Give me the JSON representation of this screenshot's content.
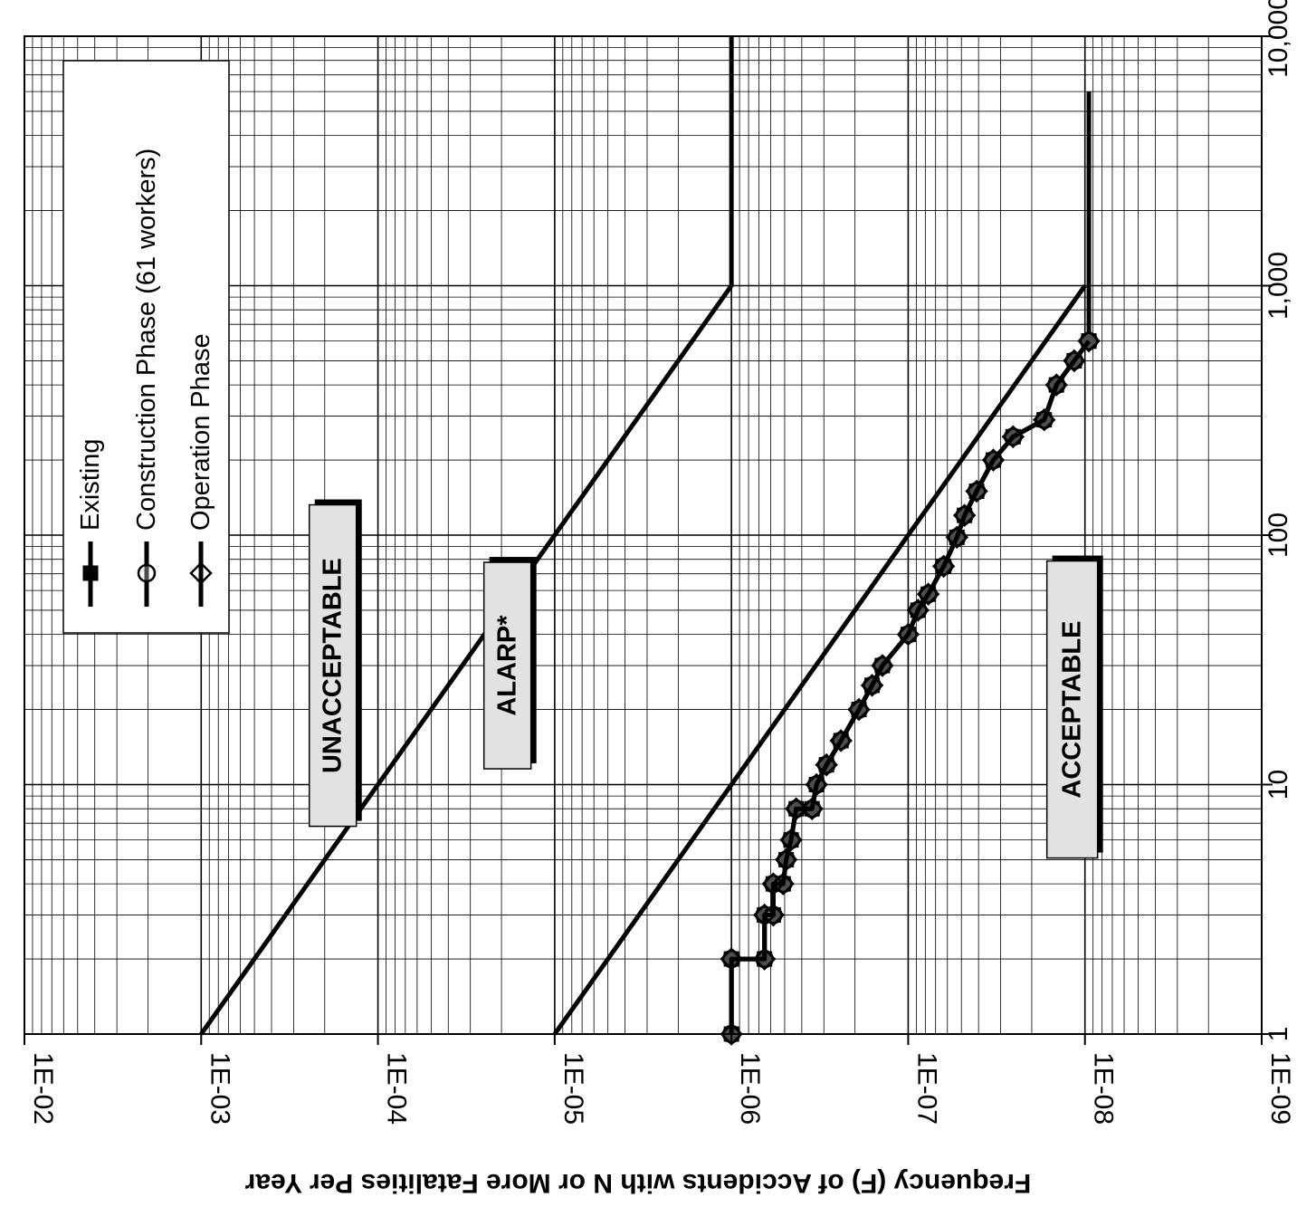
{
  "chart_data": {
    "type": "line",
    "title": "",
    "ylabel": "Frequency (F) of Accidents with N or More Fatalities Per Year",
    "xlabel": "",
    "x_scale": "log",
    "y_scale": "log",
    "x_range": [
      1,
      10000
    ],
    "y_range": [
      1e-09,
      0.01
    ],
    "x_ticks": [
      "1",
      "10",
      "100",
      "1,000",
      "10,000"
    ],
    "y_ticks": [
      "1E-09",
      "1E-08",
      "1E-07",
      "1E-06",
      "1E-05",
      "1E-04",
      "1E-03",
      "1E-02"
    ],
    "grid": true,
    "legend_position": "top-left",
    "legend": [
      "Existing",
      "Construction Phase (61 workers)",
      "Operation Phase"
    ],
    "regions": [
      {
        "label": "UNACCEPTABLE",
        "n_center": 30,
        "f_center": 0.00018
      },
      {
        "label": "ALARP*",
        "n_center": 30,
        "f_center": 1.85e-05
      },
      {
        "label": "ACCEPTABLE",
        "n_center": 20,
        "f_center": 1.18e-08
      }
    ],
    "criteria_lines": [
      {
        "points": [
          [
            1,
            0.001
          ],
          [
            1000,
            1e-06
          ],
          [
            10000,
            1e-06
          ]
        ]
      },
      {
        "points": [
          [
            1,
            1e-05
          ],
          [
            1000,
            1e-08
          ]
        ]
      }
    ],
    "series": [
      {
        "marker": "square",
        "points": [
          [
            1,
            1e-06
          ],
          [
            2,
            1e-06
          ],
          [
            2,
            6.5e-07
          ],
          [
            3,
            6.5e-07
          ],
          [
            3,
            5.8e-07
          ],
          [
            4,
            5.8e-07
          ],
          [
            4,
            5.1e-07
          ],
          [
            5,
            4.9e-07
          ],
          [
            6,
            4.6e-07
          ],
          [
            8,
            4.3e-07
          ],
          [
            8,
            3.5e-07
          ],
          [
            10,
            3.3e-07
          ],
          [
            12,
            2.9e-07
          ],
          [
            15,
            2.4e-07
          ],
          [
            20,
            1.9e-07
          ],
          [
            25,
            1.6e-07
          ],
          [
            30,
            1.4e-07
          ],
          [
            40,
            1e-07
          ],
          [
            50,
            8.8e-08
          ],
          [
            58,
            7.7e-08
          ],
          [
            75,
            6.3e-08
          ],
          [
            98,
            5.3e-08
          ],
          [
            120,
            4.8e-08
          ],
          [
            150,
            4.1e-08
          ],
          [
            200,
            3.3e-08
          ],
          [
            248,
            2.55e-08
          ],
          [
            290,
            1.7e-08
          ],
          [
            400,
            1.45e-08
          ],
          [
            500,
            1.15e-08
          ],
          [
            600,
            9.5e-09
          ],
          [
            600,
            9.5e-09
          ],
          [
            6000,
            9.5e-09
          ]
        ]
      },
      {
        "marker": "circle",
        "points": [
          [
            1,
            1e-06
          ],
          [
            2,
            1e-06
          ],
          [
            2,
            6.5e-07
          ],
          [
            3,
            6.5e-07
          ],
          [
            3,
            5.8e-07
          ],
          [
            4,
            5.8e-07
          ],
          [
            4,
            5.1e-07
          ],
          [
            5,
            4.9e-07
          ],
          [
            6,
            4.6e-07
          ],
          [
            8,
            4.3e-07
          ],
          [
            8,
            3.5e-07
          ],
          [
            10,
            3.3e-07
          ],
          [
            12,
            2.9e-07
          ],
          [
            15,
            2.4e-07
          ],
          [
            20,
            1.9e-07
          ],
          [
            25,
            1.6e-07
          ],
          [
            30,
            1.4e-07
          ],
          [
            40,
            1e-07
          ],
          [
            50,
            8.8e-08
          ],
          [
            58,
            7.7e-08
          ],
          [
            75,
            6.3e-08
          ],
          [
            98,
            5.3e-08
          ],
          [
            120,
            4.8e-08
          ],
          [
            150,
            4.1e-08
          ],
          [
            200,
            3.3e-08
          ],
          [
            248,
            2.55e-08
          ],
          [
            290,
            1.7e-08
          ],
          [
            400,
            1.45e-08
          ],
          [
            500,
            1.15e-08
          ],
          [
            600,
            9.5e-09
          ]
        ]
      },
      {
        "marker": "diamond",
        "points": [
          [
            1,
            1e-06
          ],
          [
            2,
            1e-06
          ],
          [
            2,
            6.5e-07
          ],
          [
            3,
            6.5e-07
          ],
          [
            3,
            5.8e-07
          ],
          [
            4,
            5.8e-07
          ],
          [
            4,
            5.1e-07
          ],
          [
            5,
            4.9e-07
          ],
          [
            6,
            4.6e-07
          ],
          [
            8,
            4.3e-07
          ],
          [
            8,
            3.5e-07
          ],
          [
            10,
            3.3e-07
          ],
          [
            12,
            2.9e-07
          ],
          [
            15,
            2.4e-07
          ],
          [
            20,
            1.9e-07
          ],
          [
            25,
            1.6e-07
          ],
          [
            30,
            1.4e-07
          ],
          [
            40,
            1e-07
          ],
          [
            50,
            8.8e-08
          ],
          [
            58,
            7.7e-08
          ],
          [
            75,
            6.3e-08
          ],
          [
            98,
            5.3e-08
          ],
          [
            120,
            4.8e-08
          ],
          [
            150,
            4.1e-08
          ],
          [
            200,
            3.3e-08
          ],
          [
            248,
            2.55e-08
          ],
          [
            290,
            1.7e-08
          ],
          [
            400,
            1.45e-08
          ],
          [
            500,
            1.15e-08
          ],
          [
            600,
            9.5e-09
          ]
        ]
      }
    ]
  }
}
